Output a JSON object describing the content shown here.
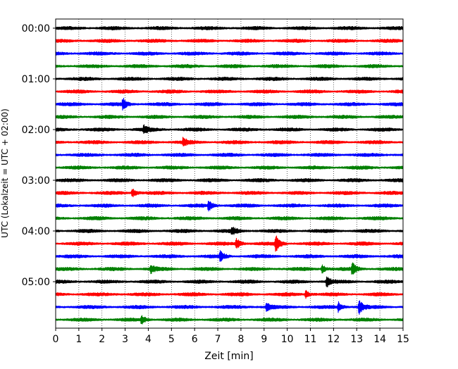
{
  "chart_data": {
    "type": "line",
    "xlabel": "Zeit  [min]",
    "ylabel": "UTC (Lokalzeit = UTC + 02:00)",
    "xlim": [
      0,
      15
    ],
    "xticks": [
      "0",
      "1",
      "2",
      "3",
      "4",
      "5",
      "6",
      "7",
      "8",
      "9",
      "10",
      "11",
      "12",
      "13",
      "14",
      "15"
    ],
    "yticks": [
      "00:00",
      "01:00",
      "02:00",
      "03:00",
      "04:00",
      "05:00"
    ],
    "grid": "vertical dotted",
    "line_colors": [
      "#000000",
      "#ff0000",
      "#0000ff",
      "#008000"
    ],
    "series": [
      {
        "time": "00:00",
        "color": "#000000"
      },
      {
        "time": "00:15",
        "color": "#ff0000"
      },
      {
        "time": "00:30",
        "color": "#0000ff"
      },
      {
        "time": "00:45",
        "color": "#008000"
      },
      {
        "time": "01:00",
        "color": "#000000"
      },
      {
        "time": "01:15",
        "color": "#ff0000"
      },
      {
        "time": "01:30",
        "color": "#0000ff",
        "events": [
          {
            "x": 2.9,
            "amp": 1.7
          }
        ]
      },
      {
        "time": "01:45",
        "color": "#008000"
      },
      {
        "time": "02:00",
        "color": "#000000",
        "events": [
          {
            "x": 3.8,
            "amp": 1.3
          }
        ]
      },
      {
        "time": "02:15",
        "color": "#ff0000",
        "events": [
          {
            "x": 5.5,
            "amp": 1.2
          }
        ]
      },
      {
        "time": "02:30",
        "color": "#0000ff"
      },
      {
        "time": "02:45",
        "color": "#008000"
      },
      {
        "time": "03:00",
        "color": "#000000"
      },
      {
        "time": "03:15",
        "color": "#ff0000",
        "events": [
          {
            "x": 3.3,
            "amp": 1.5
          }
        ]
      },
      {
        "time": "03:30",
        "color": "#0000ff",
        "events": [
          {
            "x": 6.6,
            "amp": 1.7
          }
        ]
      },
      {
        "time": "03:45",
        "color": "#008000"
      },
      {
        "time": "04:00",
        "color": "#000000",
        "events": [
          {
            "x": 7.6,
            "amp": 1.2
          }
        ]
      },
      {
        "time": "04:15",
        "color": "#ff0000",
        "events": [
          {
            "x": 7.8,
            "amp": 1.8
          },
          {
            "x": 9.5,
            "amp": 3.0
          }
        ]
      },
      {
        "time": "04:30",
        "color": "#0000ff",
        "events": [
          {
            "x": 7.1,
            "amp": 1.6
          }
        ]
      },
      {
        "time": "04:45",
        "color": "#008000",
        "events": [
          {
            "x": 4.1,
            "amp": 1.4
          },
          {
            "x": 11.5,
            "amp": 1.3
          },
          {
            "x": 12.8,
            "amp": 1.9
          }
        ]
      },
      {
        "time": "05:00",
        "color": "#000000",
        "events": [
          {
            "x": 11.7,
            "amp": 1.6
          }
        ]
      },
      {
        "time": "05:15",
        "color": "#ff0000",
        "events": [
          {
            "x": 10.8,
            "amp": 1.2
          }
        ]
      },
      {
        "time": "05:30",
        "color": "#0000ff",
        "events": [
          {
            "x": 9.1,
            "amp": 1.3
          },
          {
            "x": 12.2,
            "amp": 1.5
          },
          {
            "x": 13.1,
            "amp": 2.2
          }
        ]
      },
      {
        "time": "05:45",
        "color": "#008000",
        "events": [
          {
            "x": 3.7,
            "amp": 1.4
          }
        ]
      }
    ]
  }
}
